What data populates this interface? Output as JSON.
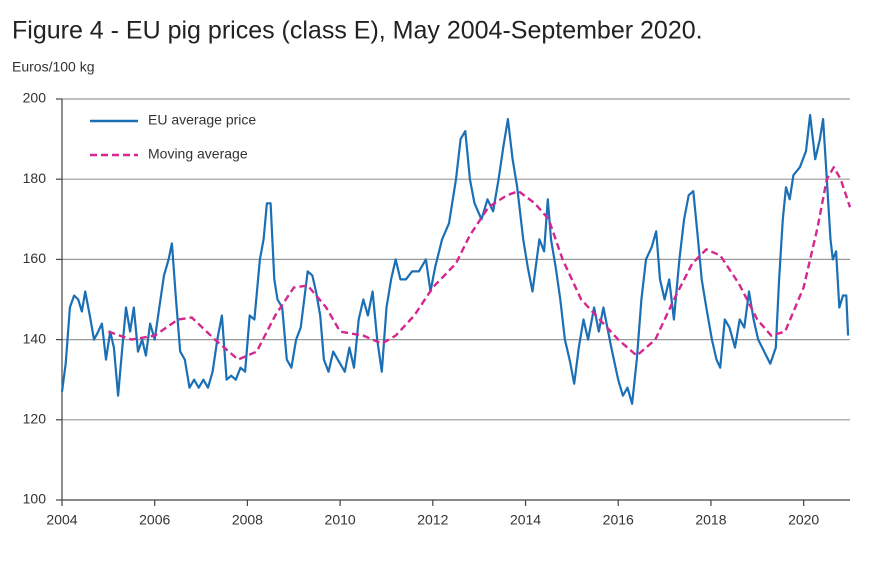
{
  "chart_data": {
    "type": "line",
    "title": "Figure 4 - EU pig prices (class E), May 2004-September 2020.",
    "y_label": "Euros/100 kg",
    "xlim": [
      2004,
      2021
    ],
    "xticks": [
      2004,
      2006,
      2008,
      2010,
      2012,
      2014,
      2016,
      2018,
      2020
    ],
    "ylim": [
      100,
      200
    ],
    "yticks": [
      100,
      120,
      140,
      160,
      180,
      200
    ],
    "grid": true,
    "legend": "top-left",
    "series": [
      {
        "name": "EU average price",
        "color": "#1b6fb5",
        "style": "solid",
        "x": [
          2004.0,
          2004.08,
          2004.17,
          2004.26,
          2004.35,
          2004.43,
          2004.5,
          2004.6,
          2004.69,
          2004.78,
          2004.86,
          2004.95,
          2005.04,
          2005.12,
          2005.21,
          2005.3,
          2005.38,
          2005.47,
          2005.55,
          2005.64,
          2005.73,
          2005.81,
          2005.9,
          2006.0,
          2006.1,
          2006.2,
          2006.3,
          2006.37,
          2006.46,
          2006.55,
          2006.65,
          2006.75,
          2006.85,
          2006.95,
          2007.05,
          2007.15,
          2007.25,
          2007.35,
          2007.45,
          2007.55,
          2007.65,
          2007.75,
          2007.85,
          2007.95,
          2008.05,
          2008.15,
          2008.27,
          2008.35,
          2008.42,
          2008.5,
          2008.58,
          2008.65,
          2008.75,
          2008.85,
          2008.95,
          2009.05,
          2009.15,
          2009.3,
          2009.4,
          2009.48,
          2009.57,
          2009.65,
          2009.75,
          2009.85,
          2010.0,
          2010.1,
          2010.2,
          2010.3,
          2010.4,
          2010.5,
          2010.6,
          2010.7,
          2010.8,
          2010.9,
          2011.0,
          2011.1,
          2011.2,
          2011.3,
          2011.42,
          2011.55,
          2011.7,
          2011.85,
          2011.95,
          2012.05,
          2012.2,
          2012.35,
          2012.5,
          2012.6,
          2012.7,
          2012.8,
          2012.9,
          2013.05,
          2013.18,
          2013.3,
          2013.42,
          2013.52,
          2013.62,
          2013.72,
          2013.82,
          2013.95,
          2014.05,
          2014.15,
          2014.3,
          2014.4,
          2014.48,
          2014.55,
          2014.65,
          2014.75,
          2014.85,
          2014.95,
          2015.05,
          2015.15,
          2015.25,
          2015.35,
          2015.48,
          2015.58,
          2015.68,
          2015.85,
          2016.0,
          2016.1,
          2016.2,
          2016.3,
          2016.4,
          2016.5,
          2016.6,
          2016.72,
          2016.82,
          2016.9,
          2017.0,
          2017.1,
          2017.2,
          2017.32,
          2017.42,
          2017.52,
          2017.62,
          2017.72,
          2017.8,
          2017.9,
          2018.02,
          2018.12,
          2018.2,
          2018.3,
          2018.4,
          2018.52,
          2018.62,
          2018.72,
          2018.82,
          2018.92,
          2019.02,
          2019.15,
          2019.28,
          2019.4,
          2019.47,
          2019.55,
          2019.62,
          2019.7,
          2019.78,
          2019.92,
          2020.05,
          2020.14,
          2020.25,
          2020.35,
          2020.42,
          2020.5,
          2020.58,
          2020.63,
          2020.7,
          2020.77,
          2020.85,
          2020.92,
          2020.96
        ],
        "values": [
          127,
          134,
          148,
          151,
          150,
          147,
          152,
          146,
          140,
          142,
          144,
          135,
          142,
          138,
          126,
          138,
          148,
          142,
          148,
          137,
          140,
          136,
          144,
          140,
          148,
          156,
          160,
          164,
          150,
          137,
          135,
          128,
          130,
          128,
          130,
          128,
          132,
          140,
          146,
          130,
          131,
          130,
          133,
          132,
          146,
          145,
          160,
          165,
          174,
          174,
          155,
          150,
          148,
          135,
          133,
          140,
          143,
          157,
          156,
          152,
          146,
          135,
          132,
          137,
          134,
          132,
          138,
          133,
          145,
          150,
          146,
          152,
          140,
          132,
          148,
          155,
          160,
          155,
          155,
          157,
          157,
          160,
          152,
          158,
          165,
          169,
          180,
          190,
          192,
          180,
          174,
          170,
          175,
          172,
          180,
          188,
          195,
          185,
          178,
          165,
          158,
          152,
          165,
          162,
          175,
          165,
          158,
          150,
          140,
          135,
          129,
          138,
          145,
          140,
          148,
          142,
          148,
          138,
          130,
          126,
          128,
          124,
          135,
          150,
          160,
          163,
          167,
          155,
          150,
          155,
          145,
          160,
          170,
          176,
          177,
          165,
          155,
          148,
          140,
          135,
          133,
          145,
          143,
          138,
          145,
          143,
          152,
          145,
          140,
          137,
          134,
          138,
          155,
          170,
          178,
          175,
          181,
          183,
          187,
          196,
          185,
          190,
          195,
          180,
          165,
          160,
          162,
          148,
          151,
          151,
          141
        ]
      },
      {
        "name": "Moving average",
        "color": "#d4278f",
        "style": "dashed",
        "x": [
          2005.0,
          2005.5,
          2006.0,
          2006.5,
          2006.8,
          2007.3,
          2007.8,
          2008.2,
          2008.6,
          2009.0,
          2009.3,
          2009.7,
          2010.0,
          2010.5,
          2010.9,
          2011.2,
          2011.6,
          2012.0,
          2012.5,
          2012.8,
          2013.2,
          2013.6,
          2013.85,
          2014.2,
          2014.5,
          2014.8,
          2015.2,
          2015.6,
          2016.0,
          2016.4,
          2016.8,
          2017.2,
          2017.6,
          2017.9,
          2018.2,
          2018.6,
          2019.0,
          2019.3,
          2019.6,
          2020.0,
          2020.3,
          2020.5,
          2020.65,
          2020.8,
          2021.0
        ],
        "values": [
          142,
          140,
          141,
          145,
          145.5,
          140,
          135,
          137,
          146,
          153,
          153.5,
          148,
          142,
          141,
          139,
          141,
          146,
          153,
          159,
          166,
          173,
          176,
          177,
          174,
          170,
          160,
          150,
          145,
          140,
          136,
          140,
          150,
          159,
          162.5,
          161,
          154,
          145,
          141,
          142,
          153,
          168,
          180,
          183,
          180,
          173
        ]
      }
    ]
  }
}
